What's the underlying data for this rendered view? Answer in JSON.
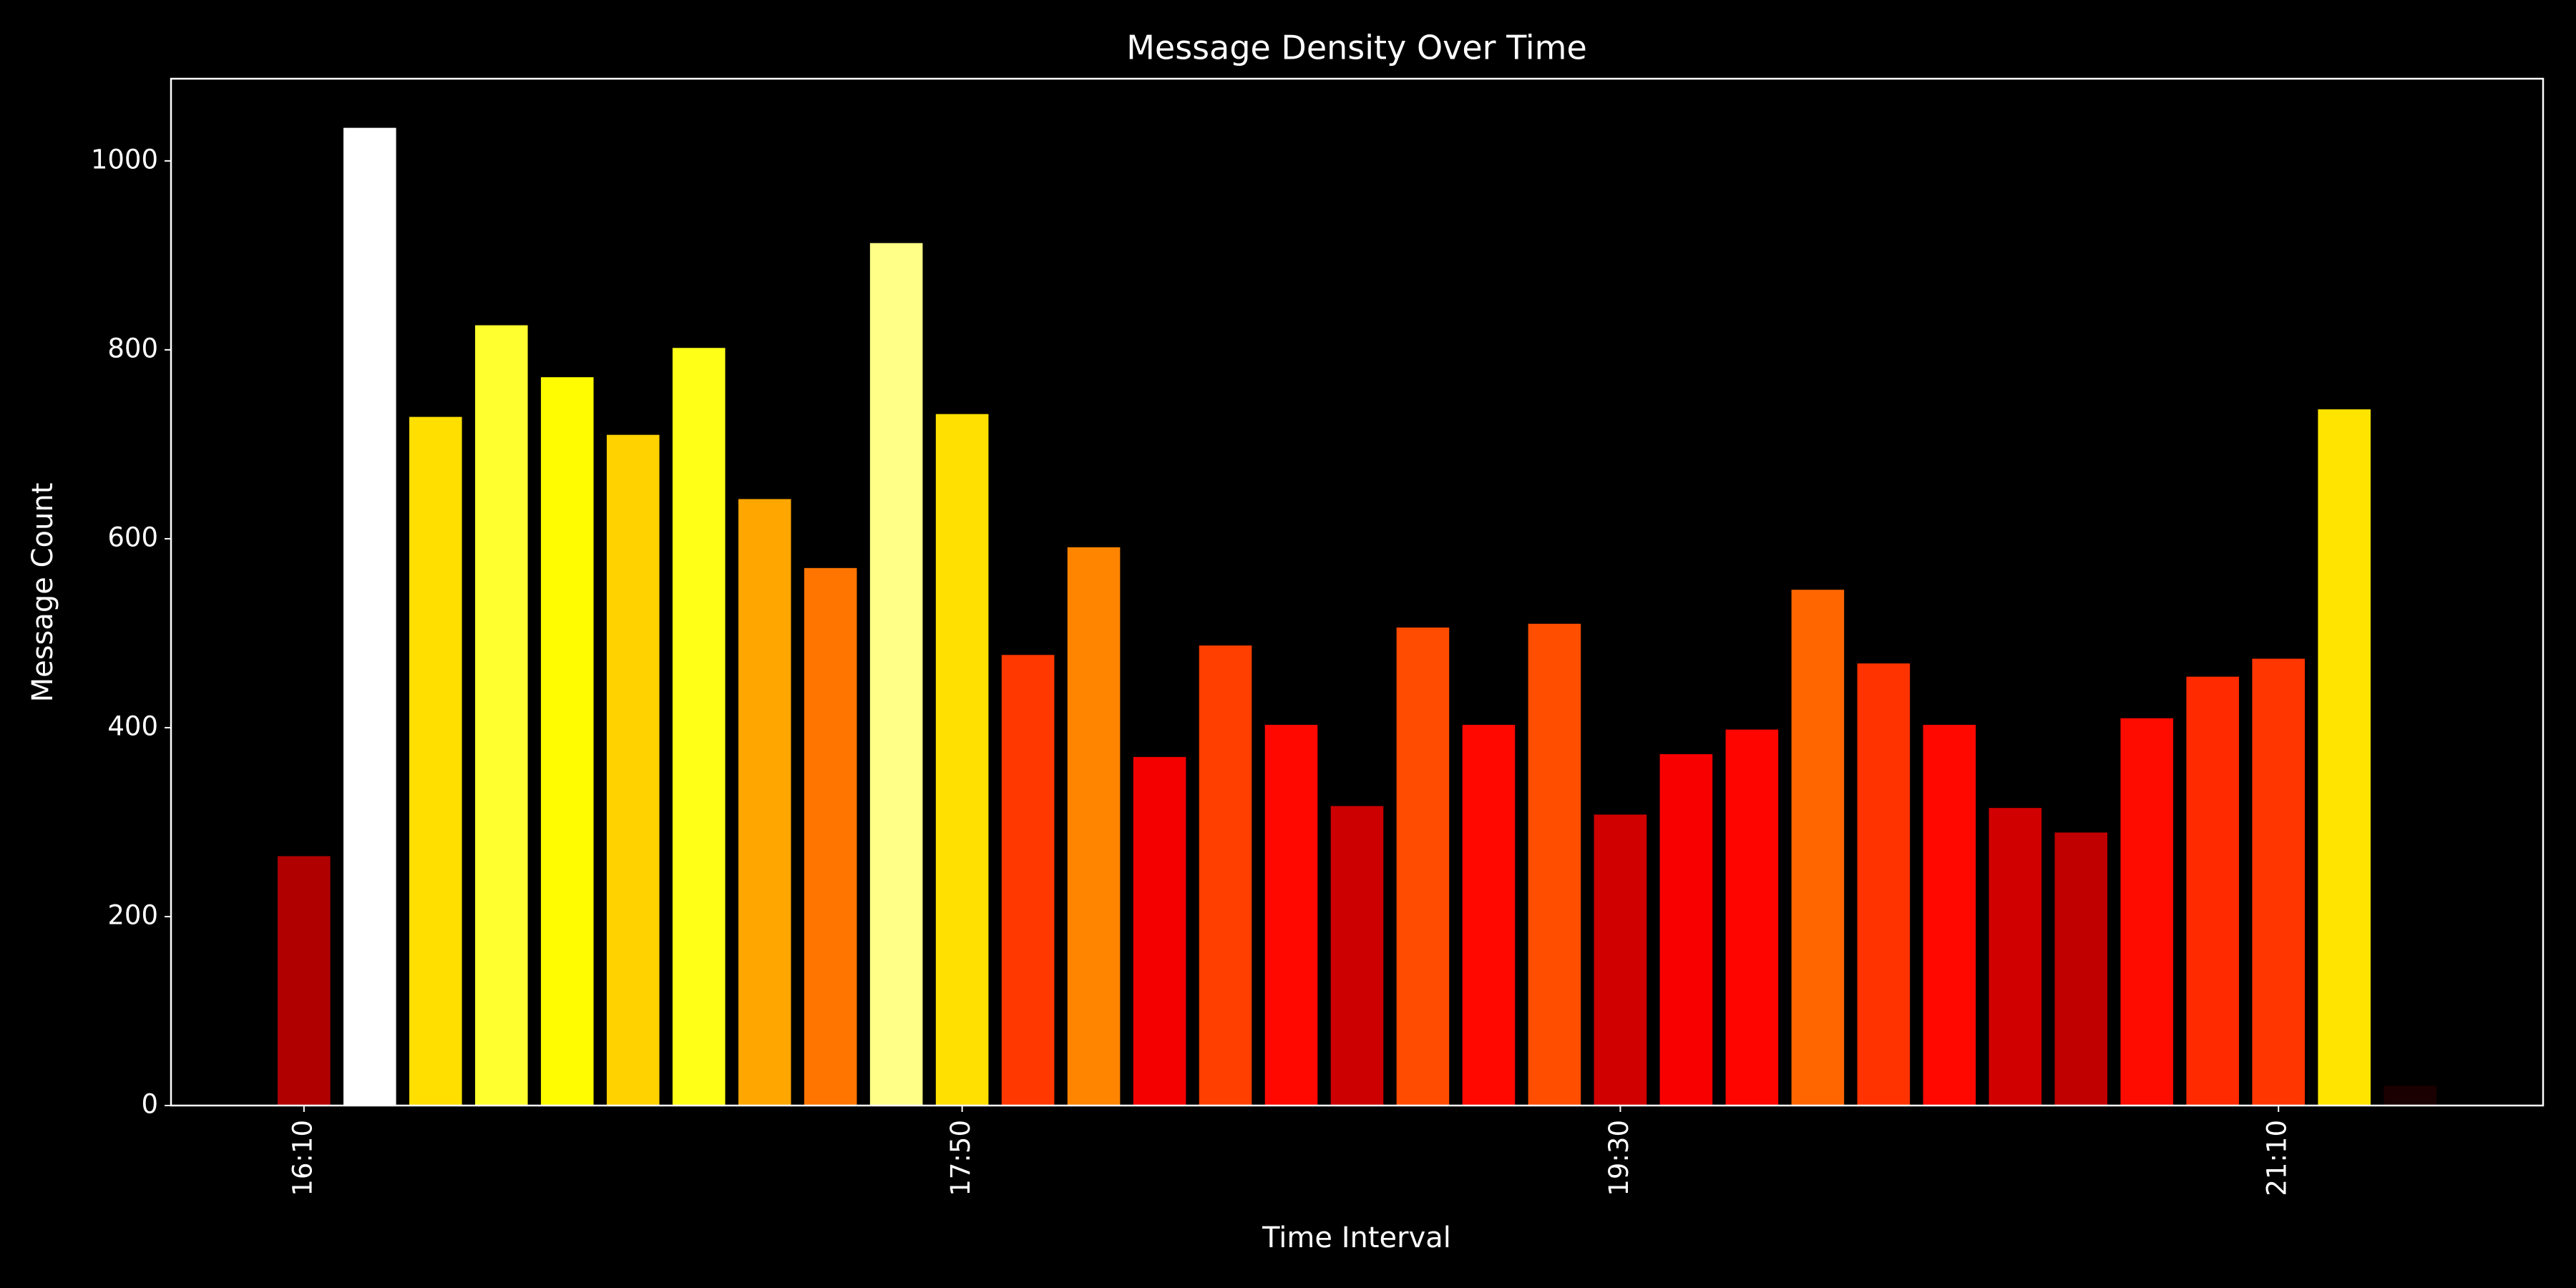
{
  "chart_data": {
    "type": "bar",
    "title": "Message Density Over Time",
    "x_label": "Time Interval",
    "y_label": "Message Count",
    "categories": [
      "16:10",
      null,
      null,
      null,
      null,
      null,
      null,
      null,
      null,
      null,
      "17:50",
      null,
      null,
      null,
      null,
      null,
      null,
      null,
      null,
      null,
      "19:30",
      null,
      null,
      null,
      null,
      null,
      null,
      null,
      null,
      null,
      "21:10",
      null,
      null
    ],
    "values": [
      264,
      1035,
      729,
      826,
      771,
      710,
      802,
      642,
      569,
      913,
      732,
      477,
      591,
      369,
      487,
      403,
      317,
      506,
      403,
      510,
      308,
      372,
      398,
      546,
      468,
      403,
      315,
      289,
      410,
      454,
      473,
      737,
      21
    ],
    "colors": [
      "#b00000",
      "#ffffff",
      "#ffdf00",
      "#ffff30",
      "#fffb00",
      "#ffd200",
      "#ffff18",
      "#ffa600",
      "#ff7500",
      "#ffff87",
      "#ffe000",
      "#ff3800",
      "#ff8400",
      "#f40000",
      "#ff3f00",
      "#ff0800",
      "#cc0000",
      "#ff4c00",
      "#ff0800",
      "#ff4e00",
      "#d00000",
      "#f80000",
      "#ff0500",
      "#ff6600",
      "#ff3300",
      "#ff0800",
      "#d00000",
      "#c00000",
      "#ff0c00",
      "#ff2a00",
      "#ff3600",
      "#ffe400",
      "#1a0000"
    ],
    "ylim": [
      0,
      1087
    ],
    "yticks": [
      0,
      200,
      400,
      600,
      800,
      1000
    ]
  }
}
